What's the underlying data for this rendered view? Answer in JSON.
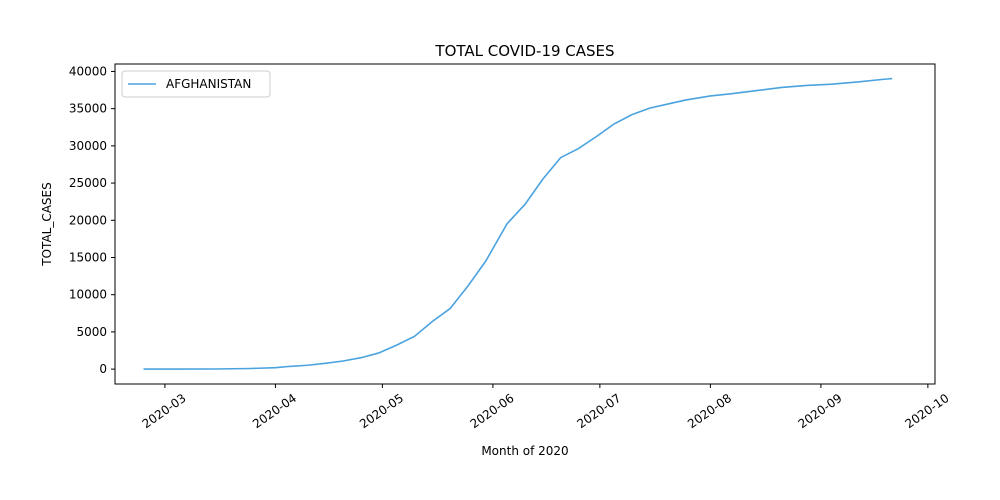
{
  "chart_data": {
    "type": "line",
    "title": "TOTAL COVID-19 CASES",
    "xlabel": "Month of 2020",
    "ylabel": "TOTAL_CASES",
    "xlim": [
      "2020-02-16",
      "2020-10-03"
    ],
    "ylim": [
      -2000,
      41000
    ],
    "x_ticks": [
      "2020-03-01",
      "2020-04-01",
      "2020-05-01",
      "2020-06-01",
      "2020-07-01",
      "2020-08-01",
      "2020-09-01",
      "2020-10-01"
    ],
    "x_tick_labels": [
      "2020-03",
      "2020-04",
      "2020-05",
      "2020-06",
      "2020-07",
      "2020-08",
      "2020-09",
      "2020-10"
    ],
    "y_ticks": [
      0,
      5000,
      10000,
      15000,
      20000,
      25000,
      30000,
      35000,
      40000
    ],
    "y_tick_labels": [
      "0",
      "5000",
      "10000",
      "15000",
      "20000",
      "25000",
      "30000",
      "35000",
      "40000"
    ],
    "grid": false,
    "legend_position": "top-left",
    "series": [
      {
        "name": "AFGHANISTAN",
        "color": "#4aa3df",
        "x": [
          "2020-02-24",
          "2020-03-05",
          "2020-03-15",
          "2020-03-25",
          "2020-04-01",
          "2020-04-05",
          "2020-04-10",
          "2020-04-15",
          "2020-04-20",
          "2020-04-25",
          "2020-04-30",
          "2020-05-05",
          "2020-05-10",
          "2020-05-15",
          "2020-05-20",
          "2020-05-25",
          "2020-05-30",
          "2020-06-05",
          "2020-06-10",
          "2020-06-15",
          "2020-06-20",
          "2020-06-25",
          "2020-06-30",
          "2020-07-05",
          "2020-07-10",
          "2020-07-15",
          "2020-07-20",
          "2020-07-25",
          "2020-08-01",
          "2020-08-07",
          "2020-08-14",
          "2020-08-21",
          "2020-08-28",
          "2020-09-04",
          "2020-09-11",
          "2020-09-18",
          "2020-09-21"
        ],
        "values": [
          1,
          5,
          16,
          84,
          192,
          367,
          521,
          784,
          1092,
          1531,
          2171,
          3224,
          4402,
          6402,
          8145,
          11173,
          14525,
          19551,
          22142,
          25527,
          28424,
          29640,
          31238,
          32951,
          34194,
          35070,
          35615,
          36157,
          36710,
          37015,
          37431,
          37856,
          38113,
          38288,
          38572,
          38919,
          39044
        ]
      }
    ]
  }
}
